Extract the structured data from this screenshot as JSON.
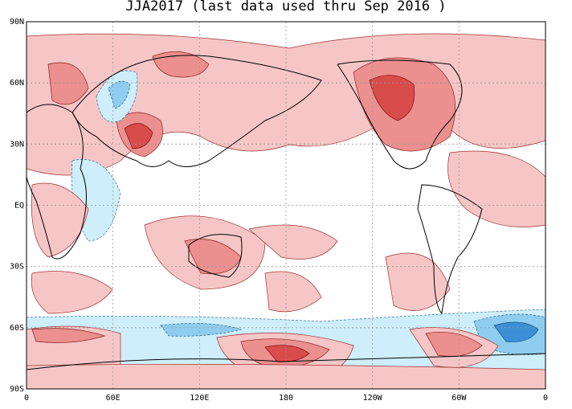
{
  "title": "JJA2017 (last data used thru Sep 2016 )",
  "latitude_labels": [
    "90N",
    "60N",
    "30N",
    "EQ",
    "30S",
    "60S",
    "90S"
  ],
  "longitude_labels": [
    "0",
    "60E",
    "120E",
    "180",
    "120W",
    "60W",
    "0"
  ]
}
